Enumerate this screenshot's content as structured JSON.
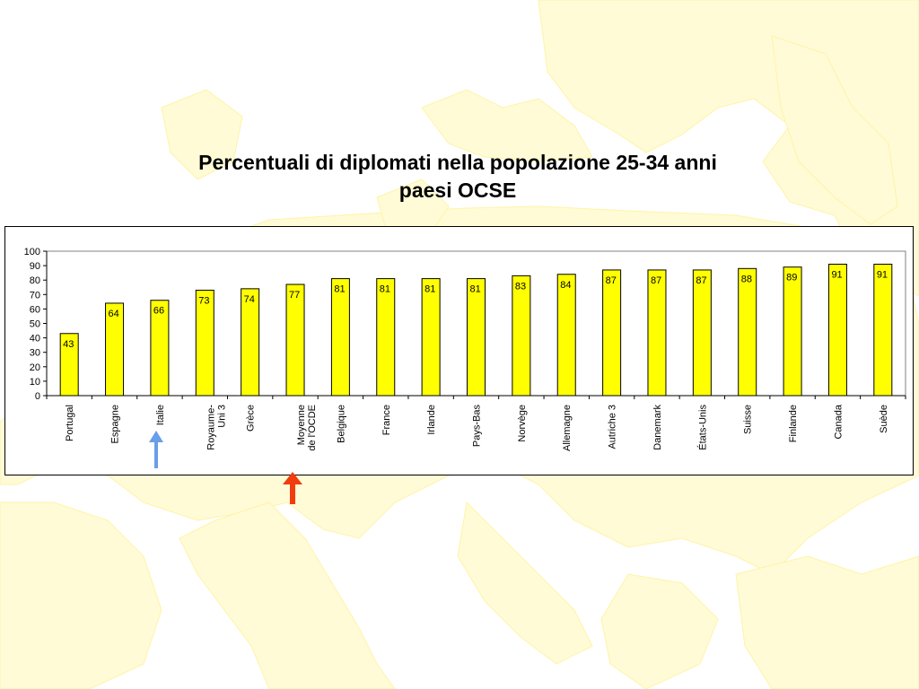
{
  "title_line1": "Percentuali di diplomati  nella popolazione 25-34 anni",
  "title_line2": "paesi OCSE",
  "colors": {
    "bar": "#ffff00",
    "bar_stroke": "#000000",
    "map_fill": "#fffbd6",
    "arrow_italie": "#6a9ee6",
    "arrow_oecd": "#f03c0f"
  },
  "chart_data": {
    "type": "bar",
    "categories": [
      "Portugal",
      "Espagne",
      "Italie",
      "Royaume-\nUni 3",
      "Grèce",
      "Moyenne\nde l'OCDE",
      "Belgique",
      "France",
      "Irlande",
      "Pays-Bas",
      "Norvège",
      "Allemagne",
      "Autriche 3",
      "Danemark",
      "États-Unis",
      "Suisse",
      "Finlande",
      "Canada",
      "Suède"
    ],
    "values": [
      43,
      64,
      66,
      73,
      74,
      77,
      81,
      81,
      81,
      81,
      83,
      84,
      87,
      87,
      87,
      88,
      89,
      91,
      91
    ],
    "ylim": [
      0,
      100
    ],
    "yticks": [
      0,
      10,
      20,
      30,
      40,
      50,
      60,
      70,
      80,
      90,
      100
    ],
    "grid": false,
    "data_labels": true,
    "highlight": [
      {
        "category": "Italie",
        "marker": "blue-arrow"
      },
      {
        "category": "Moyenne\nde l'OCDE",
        "marker": "red-arrow"
      }
    ]
  }
}
